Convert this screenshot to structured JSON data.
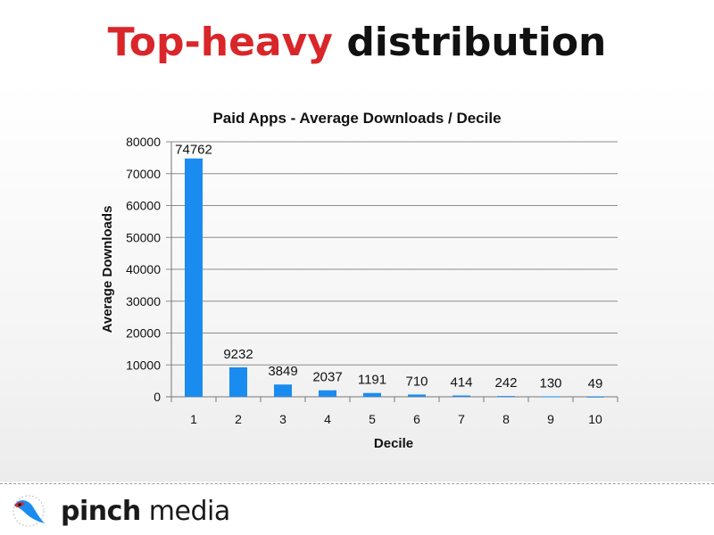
{
  "slide": {
    "title_accent": "Top-heavy",
    "title_rest": "distribution",
    "accent_color": "#d9262a"
  },
  "chart_data": {
    "type": "bar",
    "title": "Paid Apps - Average Downloads / Decile",
    "xlabel": "Decile",
    "ylabel": "Average Downloads",
    "categories": [
      "1",
      "2",
      "3",
      "4",
      "5",
      "6",
      "7",
      "8",
      "9",
      "10"
    ],
    "values": [
      74762,
      9232,
      3849,
      2037,
      1191,
      710,
      414,
      242,
      130,
      49
    ],
    "data_labels": [
      "74762",
      "9232",
      "3849",
      "2037",
      "1191",
      "710",
      "414",
      "242",
      "130",
      "49"
    ],
    "ylim": [
      0,
      80000
    ],
    "yticks": [
      0,
      10000,
      20000,
      30000,
      40000,
      50000,
      60000,
      70000,
      80000
    ],
    "grid": true,
    "legend": "none",
    "bar_color": "#1a8cf0"
  },
  "footer": {
    "brand_bold": "pinch",
    "brand_regular": " media",
    "logo_icon": "bird-logo-icon"
  }
}
